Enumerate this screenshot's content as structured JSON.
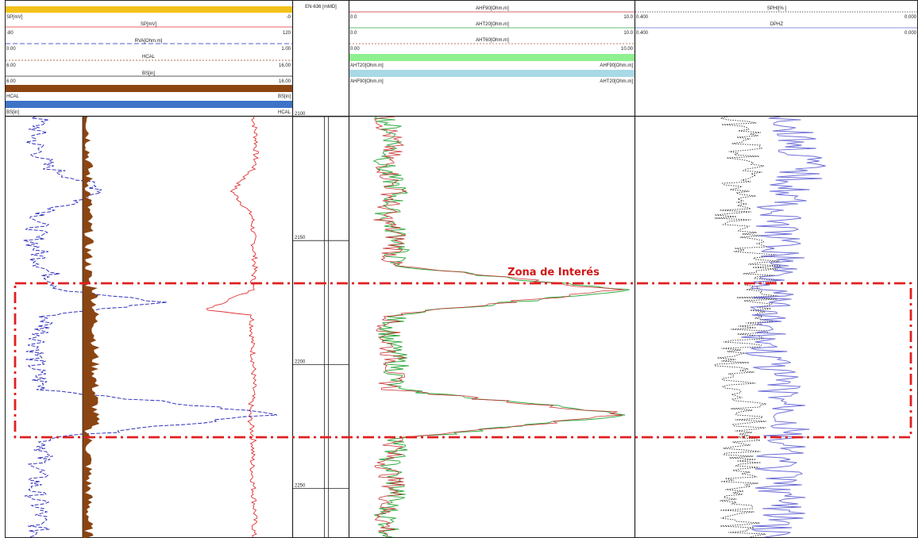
{
  "colors": {
    "sp": "#f3c21a",
    "sp_curve": "#e03030",
    "rva": "#2222b8",
    "hcal": "#8b4513",
    "bs": "#2a4f8a",
    "ahf90": "#c83030",
    "aht20": "#2aa83a",
    "aht60": "#b05030",
    "fill_aht20": "#8ef08e",
    "fill_ahf90": "#a9d9e6",
    "sphi": "#333333",
    "dphz": "#6a6ad6",
    "zone": "#e02020"
  },
  "track1": {
    "sp_top": {
      "label": "SP[mV]",
      "right": "-0"
    },
    "sp": {
      "label": "SP[mV]",
      "left": "-80",
      "right": "120"
    },
    "rva": {
      "label": "RVA[Ohm.m]",
      "left": "0.00",
      "right": "1.00"
    },
    "hcal": {
      "label": "HCAL",
      "left": "6.00",
      "right": "16.00"
    },
    "bs": {
      "label": "BS[in]",
      "left": "6.00",
      "right": "16.00"
    },
    "fill1": {
      "left": "HCAL",
      "right": "BS[in]"
    },
    "fill2": {
      "left": "BS[in]",
      "right": "HCAL"
    }
  },
  "depth_track": {
    "title": "EN-636 [mMD]",
    "ticks": [
      "2100",
      "2150",
      "2200",
      "2250"
    ]
  },
  "track3": {
    "ahf90": {
      "label": "AHF90[Ohm.m]",
      "left": "0.0",
      "right": "10.0"
    },
    "aht20": {
      "label": "AHT20[Ohm.m]",
      "left": "0.0",
      "right": "10.0"
    },
    "aht60": {
      "label": "AHT60[Ohm.m]",
      "left": "0.00",
      "right": "10.00"
    },
    "fill1": {
      "left": "AHT20[Ohm.m]",
      "right": "AHF90[Ohm.m]"
    },
    "fill2": {
      "left": "AHF90[Ohm.m]",
      "right": "AHT20[Ohm.m]"
    }
  },
  "track4": {
    "sphi": {
      "label": "SPHI[% ]",
      "left": "0.400",
      "right": "0.000"
    },
    "dphz": {
      "label": "DPHZ",
      "left": "0.400",
      "right": "0.000"
    }
  },
  "annotation": "Zona de Interés",
  "chart_data": {
    "type": "line",
    "title": "",
    "depth_unit": "mMD",
    "depth_range": [
      2100,
      2270
    ],
    "zone_of_interest": {
      "top": 2168,
      "base": 2226
    },
    "tracks": [
      {
        "name": "Track 1",
        "curves": [
          "SP[mV]",
          "RVA[Ohm.m]",
          "HCAL",
          "BS[in]"
        ]
      },
      {
        "name": "EN-636 [mMD]",
        "curves": []
      },
      {
        "name": "Track 3",
        "curves": [
          "AHF90[Ohm.m]",
          "AHT20[Ohm.m]",
          "AHT60[Ohm.m]"
        ]
      },
      {
        "name": "Track 4",
        "curves": [
          "SPHI[% ]",
          "DPHZ"
        ]
      }
    ],
    "series": [
      {
        "name": "SP[mV]",
        "depth": [
          2100,
          2110,
          2120,
          2130,
          2140,
          2150,
          2160,
          2170,
          2178,
          2180,
          2190,
          2200,
          2210,
          2220,
          2230,
          2240,
          2250,
          2260,
          2270
        ],
        "values": [
          93,
          95,
          94,
          78,
          92,
          93,
          94,
          92,
          60,
          92,
          92,
          93,
          93,
          90,
          93,
          92,
          93,
          94,
          93
        ]
      },
      {
        "name": "RVA[Ohm.m]",
        "depth": [
          2100,
          2110,
          2120,
          2130,
          2140,
          2150,
          2160,
          2170,
          2175,
          2180,
          2190,
          2200,
          2210,
          2220,
          2230,
          2240,
          2250,
          2260,
          2270
        ],
        "values": [
          0.12,
          0.1,
          0.14,
          0.35,
          0.12,
          0.1,
          0.13,
          0.2,
          0.55,
          0.15,
          0.12,
          0.1,
          0.13,
          0.95,
          0.15,
          0.12,
          0.1,
          0.12,
          0.11
        ]
      },
      {
        "name": "AHF90[Ohm.m]",
        "depth": [
          2100,
          2110,
          2120,
          2130,
          2140,
          2150,
          2160,
          2170,
          2180,
          2190,
          2200,
          2210,
          2220,
          2230,
          2240,
          2250,
          2260,
          2270
        ],
        "values": [
          1.2,
          1.5,
          1.3,
          1.6,
          1.2,
          1.7,
          1.4,
          9.5,
          1.5,
          1.3,
          1.6,
          1.4,
          9.8,
          1.7,
          1.3,
          1.6,
          1.2,
          1.4
        ]
      },
      {
        "name": "AHT20[Ohm.m]",
        "depth": [
          2100,
          2110,
          2120,
          2130,
          2140,
          2150,
          2160,
          2170,
          2180,
          2190,
          2200,
          2210,
          2220,
          2230,
          2240,
          2250,
          2260,
          2270
        ],
        "values": [
          1.3,
          1.6,
          1.2,
          1.7,
          1.3,
          1.8,
          1.5,
          9.6,
          1.6,
          1.4,
          1.7,
          1.5,
          9.9,
          1.8,
          1.4,
          1.7,
          1.3,
          1.5
        ]
      },
      {
        "name": "SPHI[% ]",
        "depth": [
          2100,
          2120,
          2140,
          2160,
          2180,
          2200,
          2220,
          2240,
          2260,
          2270
        ],
        "values": [
          0.25,
          0.24,
          0.26,
          0.22,
          0.23,
          0.26,
          0.24,
          0.25,
          0.26,
          0.24
        ]
      },
      {
        "name": "DPHZ",
        "depth": [
          2100,
          2120,
          2140,
          2160,
          2180,
          2200,
          2220,
          2240,
          2260,
          2270
        ],
        "values": [
          0.18,
          0.16,
          0.2,
          0.19,
          0.22,
          0.21,
          0.18,
          0.2,
          0.19,
          0.21
        ]
      }
    ]
  }
}
